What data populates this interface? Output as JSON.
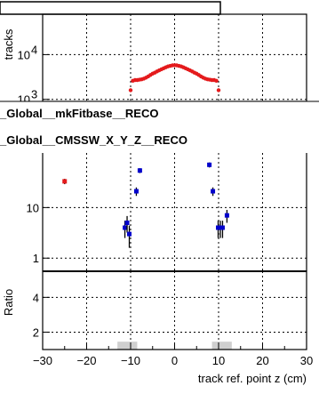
{
  "chart_data": [
    {
      "type": "scatter",
      "panel": "top",
      "ylabel": "tracks",
      "yscale": "log",
      "yticks": [
        {
          "value": 1000,
          "label": "10",
          "exp": "3"
        },
        {
          "value": 10000,
          "label": "10",
          "exp": "4"
        }
      ],
      "ylim": [
        900,
        80000
      ],
      "xlim": [
        -30,
        30
      ],
      "grid": true,
      "series": [
        {
          "color": "#e41a1c",
          "x": [
            -10.0,
            -9.5,
            -9.0,
            -8.5,
            -8.0,
            -7.5,
            -7.0,
            -6.5,
            -6.0,
            -5.5,
            -5.0,
            -4.5,
            -4.0,
            -3.5,
            -3.0,
            -2.5,
            -2.0,
            -1.5,
            -1.0,
            -0.5,
            0.0,
            0.5,
            1.0,
            1.5,
            2.0,
            2.5,
            3.0,
            3.5,
            4.0,
            4.5,
            5.0,
            5.5,
            6.0,
            6.5,
            7.0,
            7.5,
            8.0,
            8.5,
            9.0,
            9.5,
            10.0
          ],
          "y": [
            1600,
            2600,
            2700,
            2700,
            2750,
            2800,
            2900,
            3050,
            3250,
            3500,
            3750,
            3950,
            4200,
            4450,
            4700,
            4950,
            5200,
            5450,
            5600,
            5750,
            5800,
            5750,
            5600,
            5450,
            5200,
            4950,
            4700,
            4450,
            4200,
            3950,
            3750,
            3500,
            3250,
            3050,
            2900,
            2800,
            2750,
            2700,
            2700,
            2600,
            1600
          ]
        }
      ]
    },
    {
      "type": "scatter",
      "panel": "middle",
      "legend": [
        {
          "label": "_Global__mkFitbase__RECO",
          "color": "#e41a1c"
        },
        {
          "label": "_Global__CMSSW_X_Y_Z__RECO",
          "color": "#0000cc"
        }
      ],
      "yscale": "log",
      "yticks": [
        {
          "value": 1,
          "label": "1"
        },
        {
          "value": 10,
          "label": "10"
        }
      ],
      "ylim": [
        0.55,
        120
      ],
      "xlim": [
        -30,
        30
      ],
      "grid": true,
      "series": [
        {
          "color": "#e41a1c",
          "points": [
            {
              "x": -25.0,
              "y": 33,
              "err": 4
            }
          ]
        },
        {
          "color": "#0000cc",
          "points": [
            {
              "x": -11.3,
              "y": 4.0,
              "err": 1.5
            },
            {
              "x": -10.8,
              "y": 5.0,
              "err": 1.8
            },
            {
              "x": -10.3,
              "y": 3.0,
              "err": 1.4
            },
            {
              "x": -8.7,
              "y": 21,
              "err": 4
            },
            {
              "x": -7.9,
              "y": 54,
              "err": 6
            },
            {
              "x": 7.9,
              "y": 70,
              "err": 8
            },
            {
              "x": 8.7,
              "y": 21,
              "err": 4
            },
            {
              "x": 9.9,
              "y": 4.0,
              "err": 1.5
            },
            {
              "x": 10.4,
              "y": 4.0,
              "err": 1.5
            },
            {
              "x": 10.9,
              "y": 4.0,
              "err": 1.5
            },
            {
              "x": 11.9,
              "y": 7.0,
              "err": 2
            }
          ]
        }
      ]
    },
    {
      "type": "bar",
      "panel": "bottom",
      "ylabel": "Ratio",
      "xlabel": "track ref. point z (cm)",
      "xlim": [
        -30,
        30
      ],
      "ylim": [
        1,
        5.5
      ],
      "xticks": [
        -30,
        -20,
        -10,
        0,
        10,
        20,
        30
      ],
      "yticks": [
        2,
        4
      ],
      "grid": true,
      "bands": [
        {
          "x0": -13,
          "x1": -8.5,
          "y": 1.45
        },
        {
          "x0": 8.5,
          "x1": 13,
          "y": 1.45
        }
      ]
    }
  ]
}
